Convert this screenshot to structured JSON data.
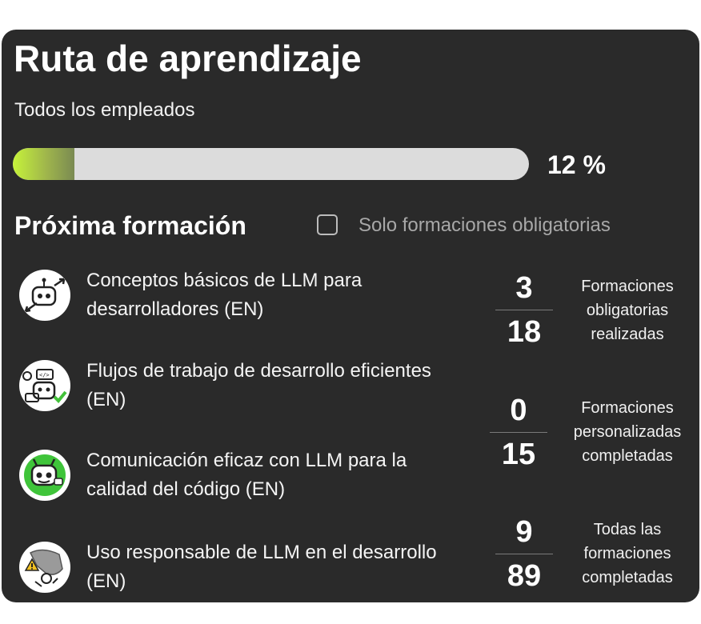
{
  "header": {
    "title": "Ruta de aprendizaje",
    "subtitle": "Todos los empleados"
  },
  "progress": {
    "percent": 12,
    "label": "12 %"
  },
  "upcoming": {
    "title": "Próxima formación",
    "filter_label": "Solo formaciones obligatorias",
    "filter_checked": false,
    "items": [
      {
        "title": "Conceptos básicos de LLM para desarrolladores (EN)",
        "icon": "robot-arrows-icon"
      },
      {
        "title": "Flujos de trabajo de desarrollo eficientes (EN)",
        "icon": "robot-code-icon"
      },
      {
        "title": "Comunicación eficaz con LLM para la calidad del código (EN)",
        "icon": "robot-chat-icon"
      },
      {
        "title": "Uso responsable de LLM en el desarrollo (EN)",
        "icon": "hand-warning-icon"
      }
    ]
  },
  "stats": [
    {
      "done": "3",
      "total": "18",
      "label": "Formaciones obligatorias realizadas"
    },
    {
      "done": "0",
      "total": "15",
      "label": "Formaciones personalizadas completadas"
    },
    {
      "done": "9",
      "total": "89",
      "label": "Todas las formaciones completadas"
    }
  ],
  "colors": {
    "card_background": "#2a2a2a",
    "progress_fill_start": "#c6f33a",
    "progress_track": "#dcdcdc",
    "muted_text": "#a8a8a8"
  }
}
